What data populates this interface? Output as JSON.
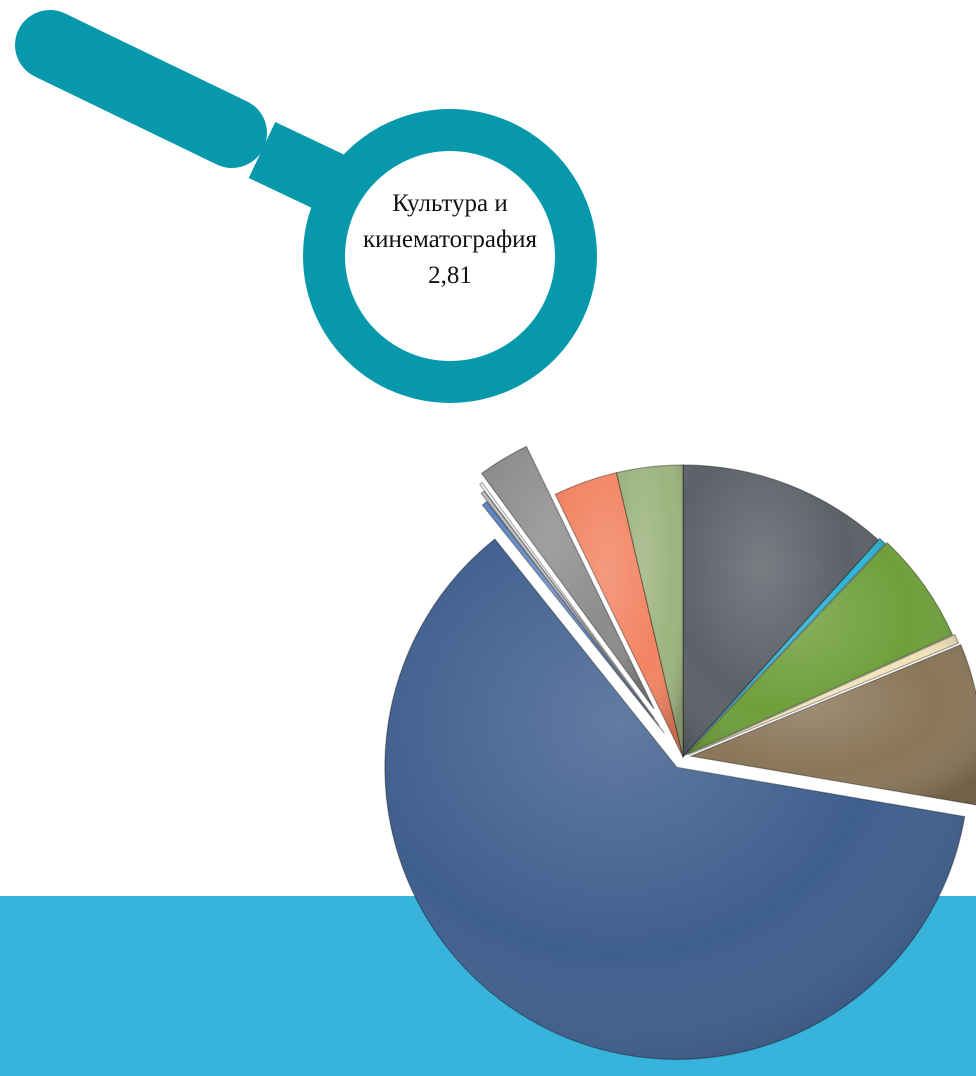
{
  "colors": {
    "background": "#ffffff",
    "footer_band": "#38b3dc",
    "magnifier": "#0799ab"
  },
  "callout": {
    "line1": "Культура и",
    "line2": "кинематография",
    "value": "2,81"
  },
  "chart_data": {
    "type": "pie",
    "style": "3d-exploded",
    "start_angle_deg": 0,
    "direction": "clockwise",
    "highlighted_slice": 9,
    "slices": [
      {
        "value": 11.5,
        "color": "#5c6168",
        "explode": 0
      },
      {
        "value": 0.4,
        "color": "#2fb5d6",
        "explode": 2
      },
      {
        "value": 6.1,
        "color": "#6f9f3b",
        "explode": 4
      },
      {
        "value": 0.5,
        "color": "#f1e2b8",
        "explode": 6
      },
      {
        "value": 8.8,
        "color": "#8a7658",
        "explode": 8
      },
      {
        "value": 60.7,
        "color": "#3f5f8e",
        "explode": 12
      },
      {
        "value": 0.3,
        "color": "#5e86c3",
        "explode": 30
      },
      {
        "value": 0.2,
        "color": "#bfbfbf",
        "explode": 40
      },
      {
        "value": 0.15,
        "color": "#ffffff",
        "explode": 48
      },
      {
        "value": 2.81,
        "color": "#8c8c8c",
        "explode": 56
      },
      {
        "value": 3.5,
        "color": "#f28462",
        "explode": 0
      },
      {
        "value": 3.6,
        "color": "#9db47f",
        "explode": 0
      }
    ]
  }
}
